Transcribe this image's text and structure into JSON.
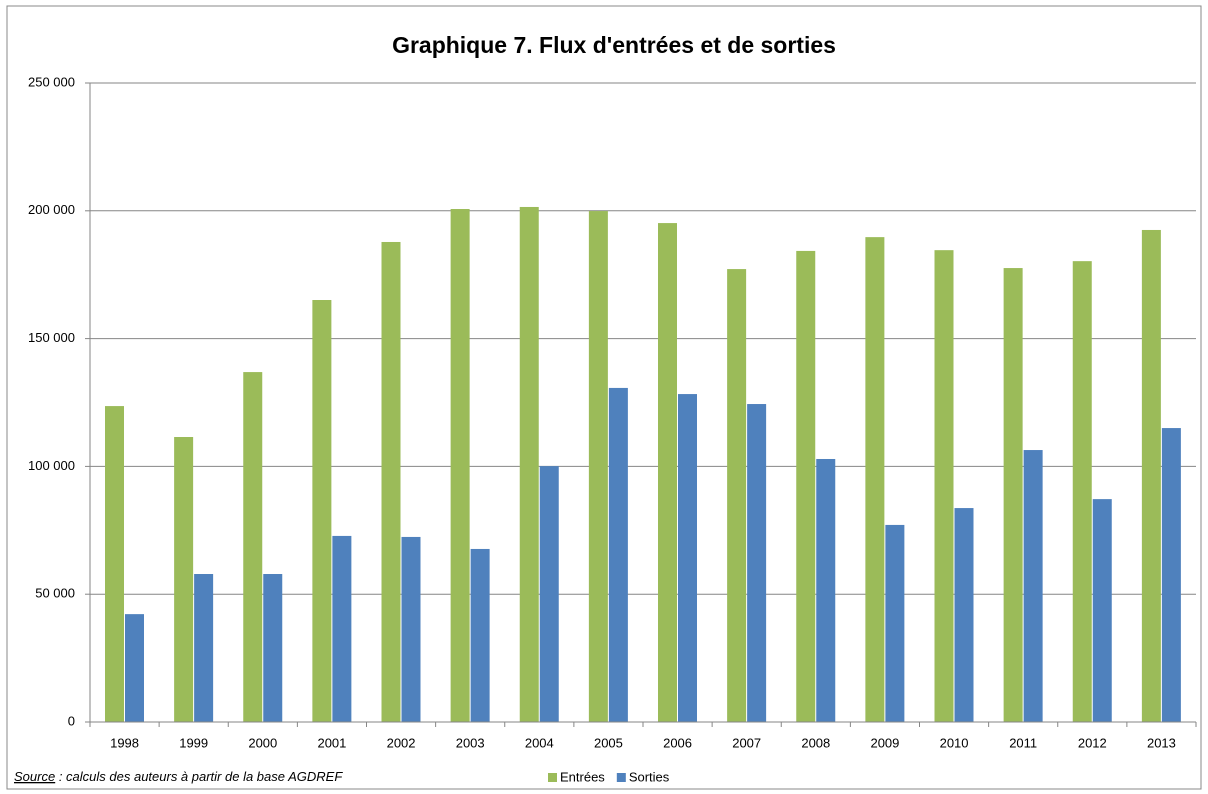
{
  "chart_data": {
    "type": "bar",
    "title": "Graphique 7. Flux d'entrées et de sorties",
    "categories": [
      "1998",
      "1999",
      "2000",
      "2001",
      "2002",
      "2003",
      "2004",
      "2005",
      "2006",
      "2007",
      "2008",
      "2009",
      "2010",
      "2011",
      "2012",
      "2013"
    ],
    "series": [
      {
        "name": "Entrées",
        "color": "#9bbb59",
        "values": [
          123600,
          111500,
          136900,
          165100,
          187800,
          200700,
          201500,
          199900,
          195200,
          177200,
          184300,
          189700,
          184600,
          177600,
          180300,
          192500
        ]
      },
      {
        "name": "Sorties",
        "color": "#4f81bd",
        "values": [
          42200,
          57900,
          57900,
          72800,
          72400,
          67700,
          100100,
          130700,
          128300,
          124400,
          102900,
          77100,
          83700,
          106400,
          87200,
          115000
        ]
      }
    ],
    "ylim": [
      0,
      250000
    ],
    "yticks": [
      0,
      {
        "value": 50000,
        "label": "50 000"
      },
      {
        "value": 100000,
        "label": "100 000"
      },
      {
        "value": 150000,
        "label": "150 000"
      },
      {
        "value": 200000,
        "label": "200 000"
      },
      {
        "value": 250000,
        "label": "250 000"
      }
    ],
    "grid": true,
    "legend": "bottom",
    "source_label": "Source",
    "source_text": " : calculs des auteurs à partir de la base AGDREF"
  }
}
